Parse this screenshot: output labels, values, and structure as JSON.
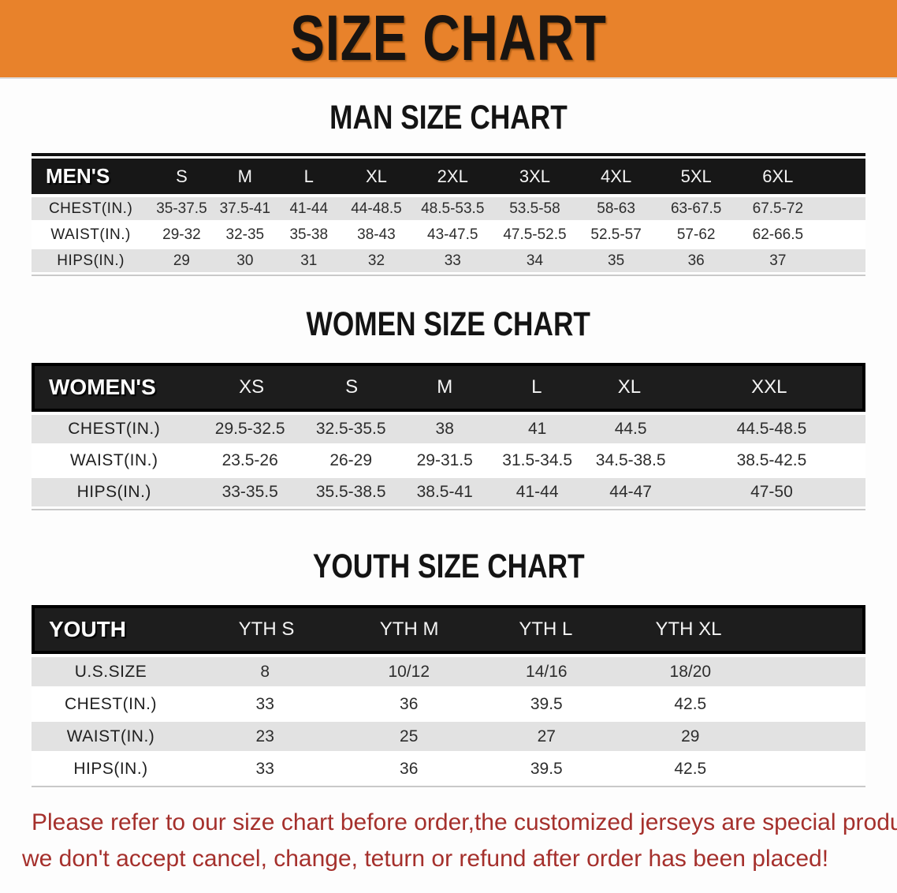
{
  "banner": {
    "title": "SIZE CHART",
    "bg_color": "#e8822b"
  },
  "sections": [
    {
      "heading": "MAN SIZE CHART",
      "group_label": "MEN'S",
      "columns": [
        "S",
        "M",
        "L",
        "XL",
        "2XL",
        "3XL",
        "4XL",
        "5XL",
        "6XL"
      ],
      "rows": [
        {
          "label": "CHEST(IN.)",
          "values": [
            "35-37.5",
            "37.5-41",
            "41-44",
            "44-48.5",
            "48.5-53.5",
            "53.5-58",
            "58-63",
            "63-67.5",
            "67.5-72"
          ]
        },
        {
          "label": "WAIST(IN.)",
          "values": [
            "29-32",
            "32-35",
            "35-38",
            "38-43",
            "43-47.5",
            "47.5-52.5",
            "52.5-57",
            "57-62",
            "62-66.5"
          ]
        },
        {
          "label": "HIPS(IN.)",
          "values": [
            "29",
            "30",
            "31",
            "32",
            "33",
            "34",
            "35",
            "36",
            "37"
          ]
        }
      ]
    },
    {
      "heading": "WOMEN SIZE CHART",
      "group_label": "WOMEN'S",
      "columns": [
        "XS",
        "S",
        "M",
        "L",
        "XL",
        "XXL"
      ],
      "rows": [
        {
          "label": "CHEST(IN.)",
          "values": [
            "29.5-32.5",
            "32.5-35.5",
            "38",
            "41",
            "44.5",
            "44.5-48.5"
          ]
        },
        {
          "label": "WAIST(IN.)",
          "values": [
            "23.5-26",
            "26-29",
            "29-31.5",
            "31.5-34.5",
            "34.5-38.5",
            "38.5-42.5"
          ]
        },
        {
          "label": "HIPS(IN.)",
          "values": [
            "33-35.5",
            "35.5-38.5",
            "38.5-41",
            "41-44",
            "44-47",
            "47-50"
          ]
        }
      ]
    },
    {
      "heading": "YOUTH SIZE CHART",
      "group_label": "YOUTH",
      "columns": [
        "YTH S",
        "YTH M",
        "YTH L",
        "YTH XL"
      ],
      "rows": [
        {
          "label": "U.S.SIZE",
          "values": [
            "8",
            "10/12",
            "14/16",
            "18/20"
          ]
        },
        {
          "label": "CHEST(IN.)",
          "values": [
            "33",
            "36",
            "39.5",
            "42.5"
          ]
        },
        {
          "label": "WAIST(IN.)",
          "values": [
            "23",
            "25",
            "27",
            "29"
          ]
        },
        {
          "label": "HIPS(IN.)",
          "values": [
            "33",
            "36",
            "39.5",
            "42.5"
          ]
        }
      ]
    }
  ],
  "disclaimer": {
    "line1": "Please refer to our size chart before order,the customized jerseys are special products,",
    "line2": "we don't accept cancel, change, teturn or refund after order has been placed!",
    "color": "#a5302c"
  }
}
